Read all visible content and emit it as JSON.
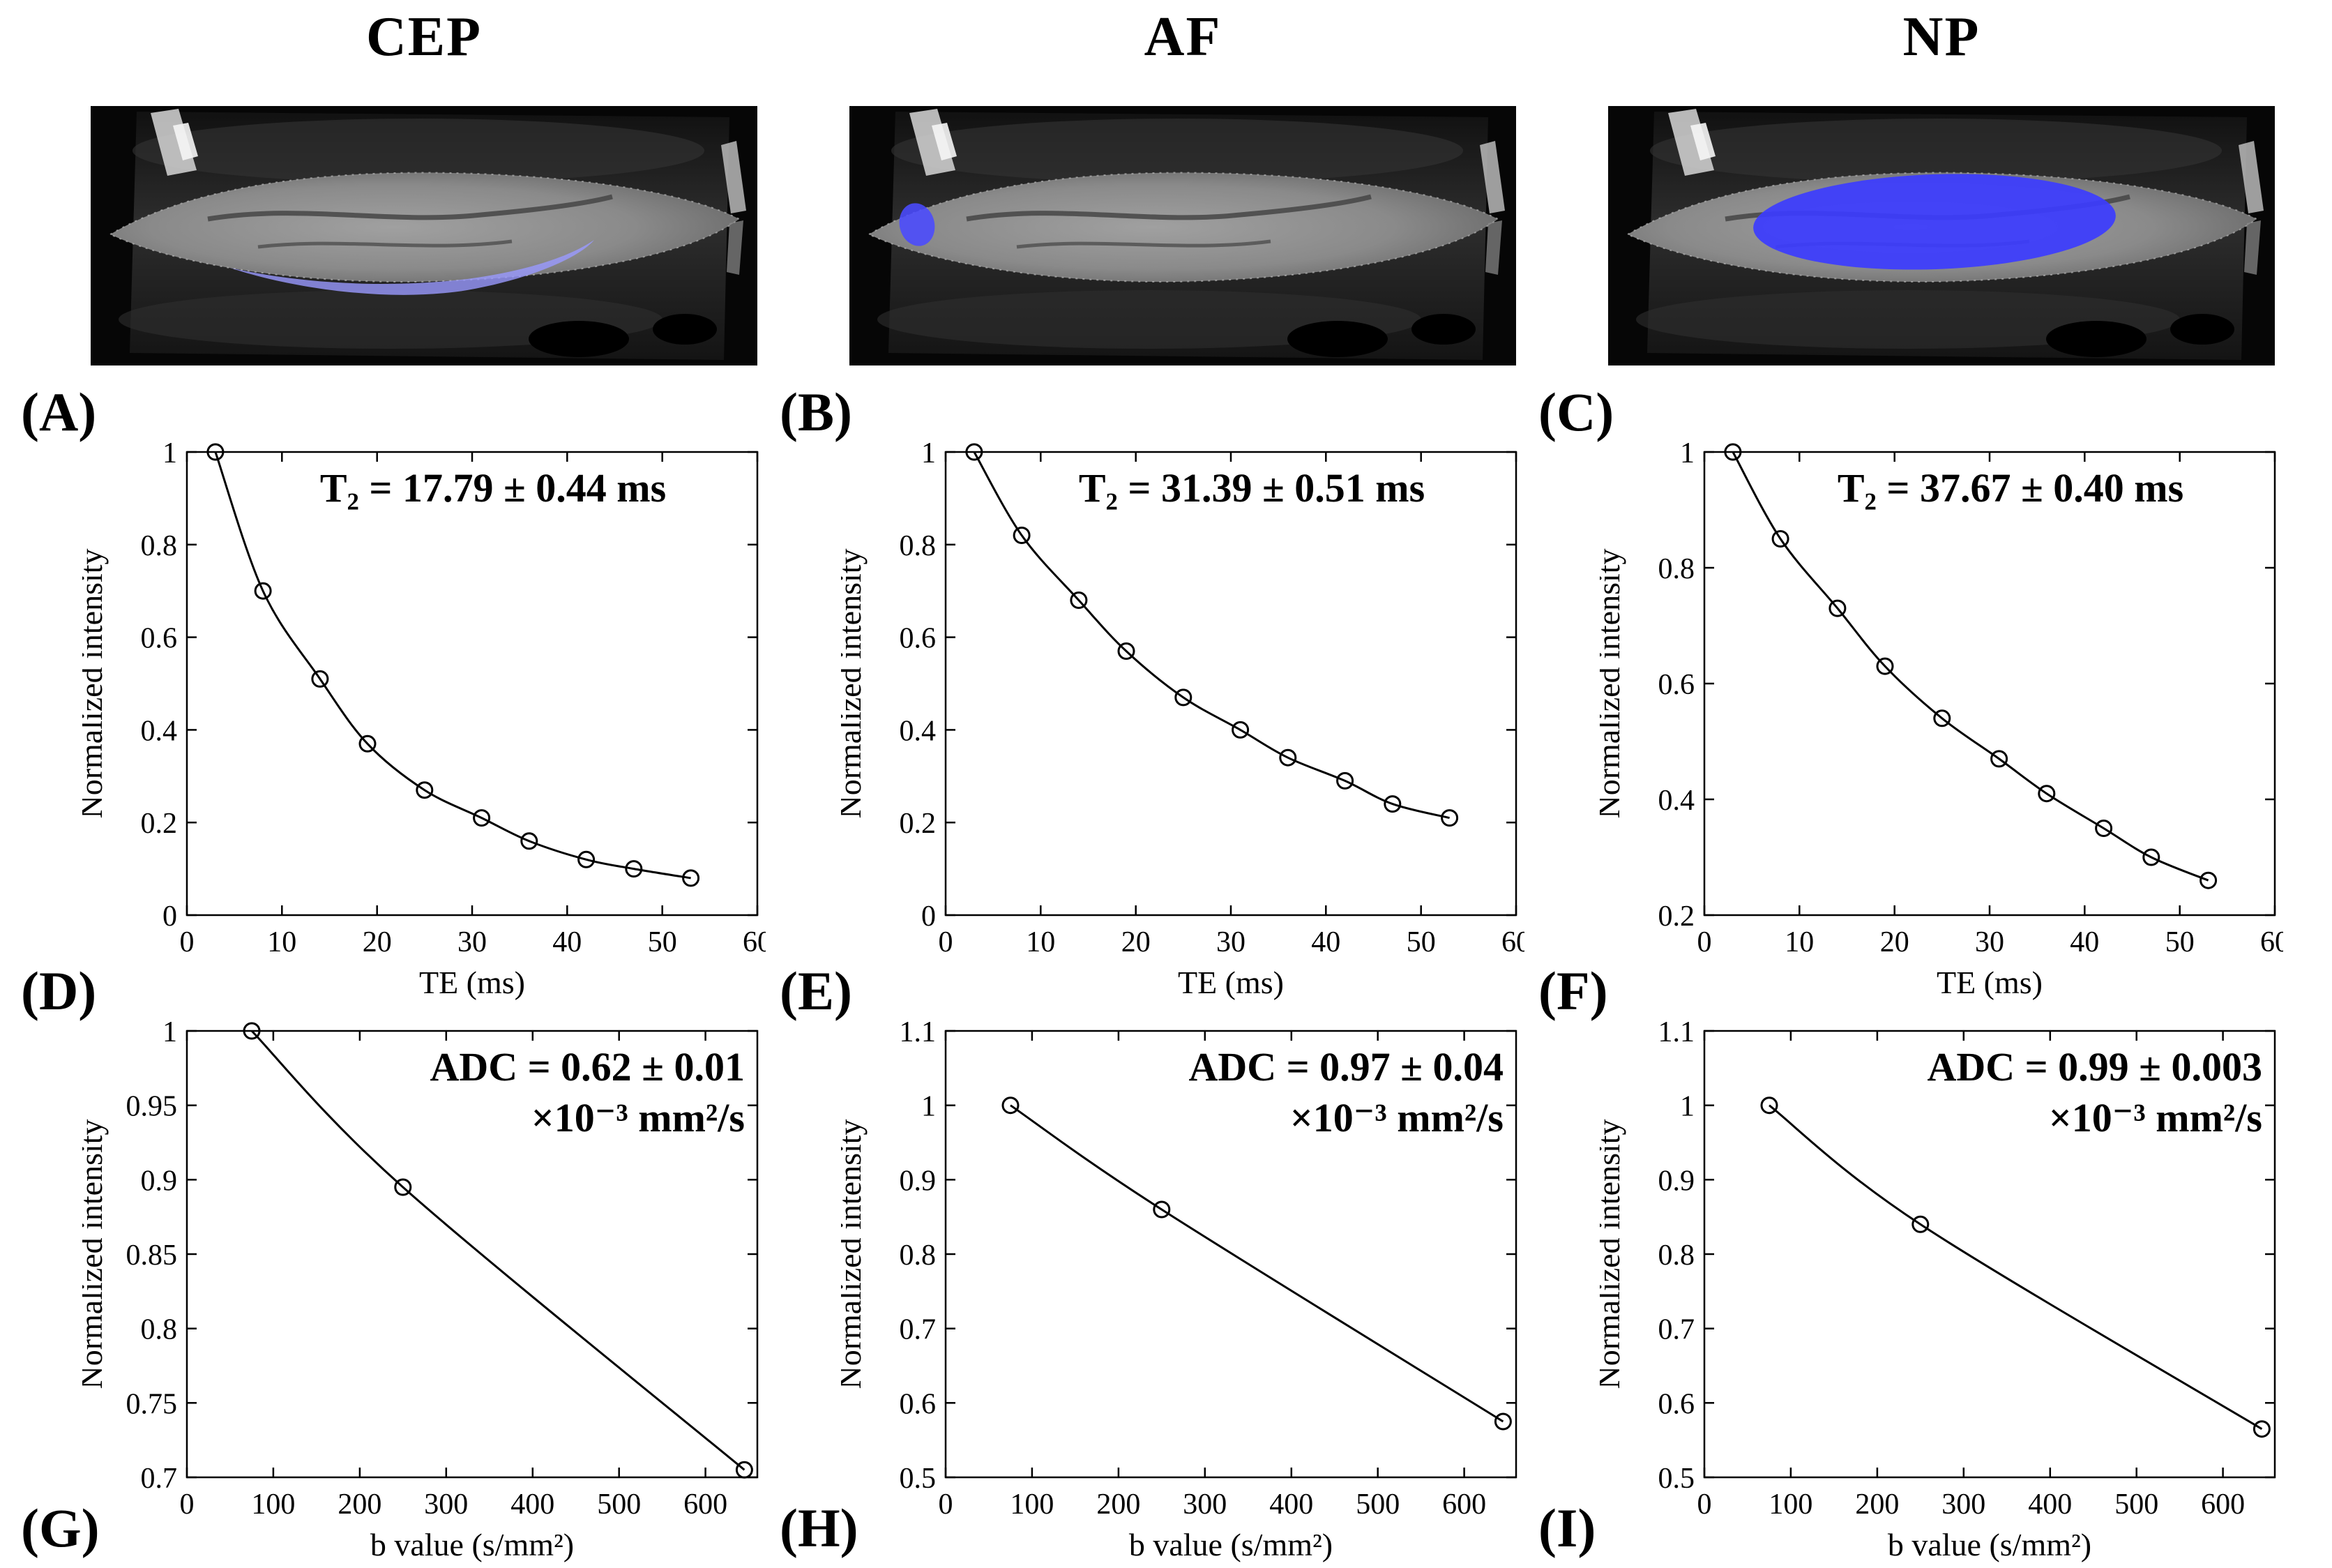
{
  "figure": {
    "columns": [
      {
        "title": "CEP",
        "roi": "cartilaginous-endplate-thin-band",
        "roi_color": "#9a9aff"
      },
      {
        "title": "AF",
        "roi": "annulus-fibrosus-left-edge-blob",
        "roi_color": "#4a4aff"
      },
      {
        "title": "NP",
        "roi": "nucleus-pulposus-central-ellipse",
        "roi_color": "#3c3cff"
      }
    ],
    "panel_labels": [
      "(A)",
      "(B)",
      "(C)",
      "(D)",
      "(E)",
      "(F)",
      "(G)",
      "(H)",
      "(I)"
    ]
  },
  "chart_data": [
    {
      "panel": "A",
      "region": "CEP",
      "type": "scatter",
      "fit": "exponential-decay",
      "x": [
        3,
        8,
        14,
        19,
        25,
        31,
        36,
        42,
        47,
        53
      ],
      "y": [
        1.0,
        0.7,
        0.51,
        0.37,
        0.27,
        0.21,
        0.16,
        0.12,
        0.1,
        0.08
      ],
      "annotation": [
        "T₂ = 17.79 ± 0.44 ms"
      ],
      "xlabel": "TE (ms)",
      "ylabel": "Normalized intensity",
      "xlim": [
        0,
        60
      ],
      "ylim": [
        0,
        1
      ],
      "xticks": [
        0,
        10,
        20,
        30,
        40,
        50,
        60
      ],
      "yticks": [
        0,
        0.2,
        0.4,
        0.6,
        0.8,
        1
      ],
      "grid": false,
      "legend": "none"
    },
    {
      "panel": "B",
      "region": "AF",
      "type": "scatter",
      "fit": "exponential-decay",
      "x": [
        3,
        8,
        14,
        19,
        25,
        31,
        36,
        42,
        47,
        53
      ],
      "y": [
        1.0,
        0.82,
        0.68,
        0.57,
        0.47,
        0.4,
        0.34,
        0.29,
        0.24,
        0.21
      ],
      "annotation": [
        "T₂ = 31.39 ± 0.51 ms"
      ],
      "xlabel": "TE (ms)",
      "ylabel": "Normalized intensity",
      "xlim": [
        0,
        60
      ],
      "ylim": [
        0,
        1
      ],
      "xticks": [
        0,
        10,
        20,
        30,
        40,
        50,
        60
      ],
      "yticks": [
        0,
        0.2,
        0.4,
        0.6,
        0.8,
        1
      ],
      "grid": false,
      "legend": "none"
    },
    {
      "panel": "C",
      "region": "NP",
      "type": "scatter",
      "fit": "exponential-decay",
      "x": [
        3,
        8,
        14,
        19,
        25,
        31,
        36,
        42,
        47,
        53
      ],
      "y": [
        1.0,
        0.85,
        0.73,
        0.63,
        0.54,
        0.47,
        0.41,
        0.35,
        0.3,
        0.26
      ],
      "annotation": [
        "T₂ = 37.67 ± 0.40 ms"
      ],
      "xlabel": "TE (ms)",
      "ylabel": "Normalized intensity",
      "xlim": [
        0,
        60
      ],
      "ylim": [
        0.2,
        1
      ],
      "xticks": [
        0,
        10,
        20,
        30,
        40,
        50,
        60
      ],
      "yticks": [
        0.2,
        0.4,
        0.6,
        0.8,
        1
      ],
      "grid": false,
      "legend": "none"
    },
    {
      "panel": "D",
      "region": "CEP",
      "type": "scatter",
      "fit": "exponential-decay",
      "x": [
        75,
        250,
        645
      ],
      "y": [
        1.0,
        0.895,
        0.705
      ],
      "annotation": [
        "ADC = 0.62 ± 0.01",
        "×10⁻³ mm²/s"
      ],
      "xlabel": "b value (s/mm²)",
      "ylabel": "Normalized intensity",
      "xlim": [
        0,
        660
      ],
      "ylim": [
        0.7,
        1
      ],
      "xticks": [
        0,
        100,
        200,
        300,
        400,
        500,
        600
      ],
      "yticks": [
        0.7,
        0.75,
        0.8,
        0.85,
        0.9,
        0.95,
        1
      ],
      "grid": false,
      "legend": "none"
    },
    {
      "panel": "E",
      "region": "AF",
      "type": "scatter",
      "fit": "exponential-decay",
      "x": [
        75,
        250,
        645
      ],
      "y": [
        1.0,
        0.86,
        0.575
      ],
      "annotation": [
        "ADC = 0.97 ± 0.04",
        "×10⁻³ mm²/s"
      ],
      "xlabel": "b value (s/mm²)",
      "ylabel": "Normalized intensity",
      "xlim": [
        0,
        660
      ],
      "ylim": [
        0.5,
        1.1
      ],
      "xticks": [
        0,
        100,
        200,
        300,
        400,
        500,
        600
      ],
      "yticks": [
        0.5,
        0.6,
        0.7,
        0.8,
        0.9,
        1,
        1.1
      ],
      "grid": false,
      "legend": "none"
    },
    {
      "panel": "F",
      "region": "NP",
      "type": "scatter",
      "fit": "exponential-decay",
      "x": [
        75,
        250,
        645
      ],
      "y": [
        1.0,
        0.84,
        0.565
      ],
      "annotation": [
        "ADC = 0.99 ± 0.003",
        "×10⁻³ mm²/s"
      ],
      "xlabel": "b value (s/mm²)",
      "ylabel": "Normalized intensity",
      "xlim": [
        0,
        660
      ],
      "ylim": [
        0.5,
        1.1
      ],
      "xticks": [
        0,
        100,
        200,
        300,
        400,
        500,
        600
      ],
      "yticks": [
        0.5,
        0.6,
        0.7,
        0.8,
        0.9,
        1,
        1.1
      ],
      "grid": false,
      "legend": "none"
    }
  ]
}
